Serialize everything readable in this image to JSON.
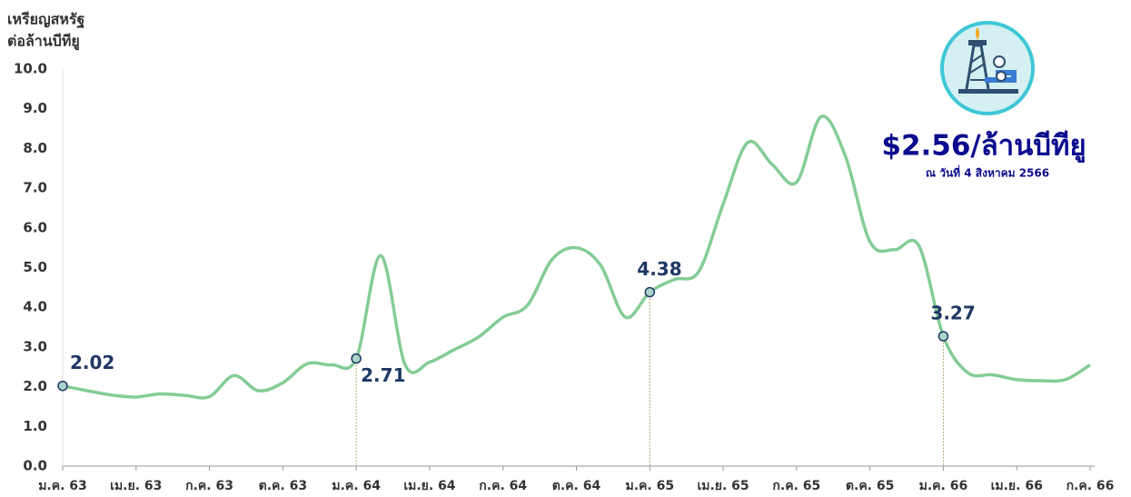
{
  "chart_data": {
    "type": "line",
    "y_axis_title": [
      "เหรียญสหรัฐ",
      "ต่อล้านบีทียู"
    ],
    "callout": {
      "headline": "$2.56/ล้านบีทียู",
      "note": "ณ วันที่ 4 สิงหาคม 2566"
    },
    "categories": [
      "ม.ค. 63",
      null,
      null,
      "เม.ย. 63",
      null,
      null,
      "ก.ค. 63",
      null,
      null,
      "ต.ค. 63",
      null,
      null,
      "ม.ค. 64",
      null,
      null,
      "เม.ย. 64",
      null,
      null,
      "ก.ค. 64",
      null,
      null,
      "ต.ค. 64",
      null,
      null,
      "ม.ค. 65",
      null,
      null,
      "เม.ย. 65",
      null,
      null,
      "ก.ค. 65",
      null,
      null,
      "ต.ค. 65",
      null,
      null,
      "ม.ค. 66",
      null,
      null,
      "เม.ย. 66",
      null,
      null,
      "ก.ค. 66"
    ],
    "series": [
      {
        "color": "#84cc96",
        "values": [
          2.02,
          1.9,
          1.79,
          1.74,
          1.82,
          1.78,
          1.75,
          2.28,
          1.9,
          2.1,
          2.58,
          2.55,
          2.71,
          5.3,
          2.55,
          2.62,
          2.93,
          3.25,
          3.75,
          4.05,
          5.2,
          5.5,
          5.05,
          3.75,
          4.38,
          4.7,
          4.9,
          6.6,
          8.15,
          7.6,
          7.15,
          8.8,
          7.8,
          5.65,
          5.45,
          5.55,
          3.27,
          2.35,
          2.3,
          2.18,
          2.15,
          2.18,
          2.55
        ],
        "value_labels": [
          "2.02",
          null,
          null,
          null,
          null,
          null,
          null,
          null,
          null,
          null,
          null,
          null,
          "2.71",
          null,
          null,
          null,
          null,
          null,
          null,
          null,
          null,
          null,
          null,
          null,
          "4.38",
          null,
          null,
          null,
          null,
          null,
          null,
          null,
          null,
          null,
          null,
          null,
          "3.27",
          null,
          null,
          null,
          null,
          null,
          null
        ]
      }
    ],
    "ylim": [
      0,
      10
    ],
    "yticks": [
      {
        "value": 0,
        "label": "0.0"
      },
      {
        "value": 1,
        "label": "1.0"
      },
      {
        "value": 2,
        "label": "2.0"
      },
      {
        "value": 3,
        "label": "3.0"
      },
      {
        "value": 4,
        "label": "4.0"
      },
      {
        "value": 5,
        "label": "5.0"
      },
      {
        "value": 6,
        "label": "6.0"
      },
      {
        "value": 7,
        "label": "7.0"
      },
      {
        "value": 8,
        "label": "8.0"
      },
      {
        "value": 9,
        "label": "9.0"
      },
      {
        "value": 10,
        "label": "10.0"
      }
    ],
    "grid": false
  }
}
